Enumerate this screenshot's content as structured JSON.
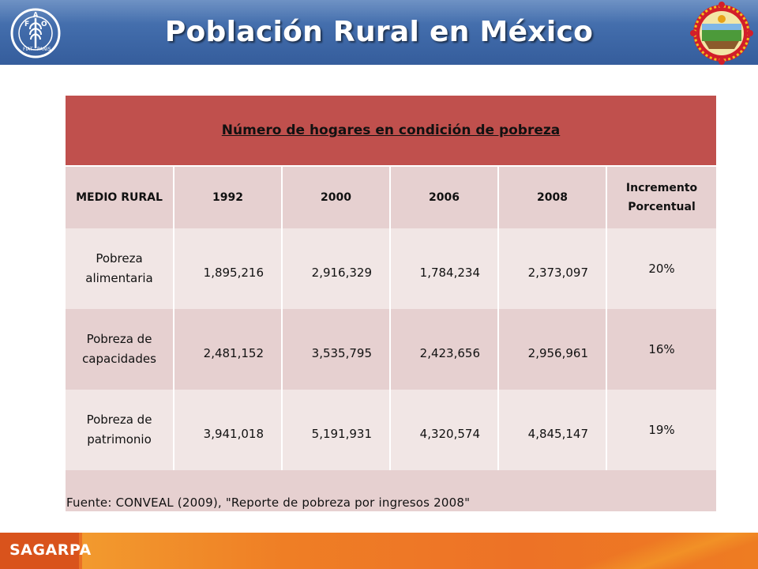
{
  "header": {
    "title": "Población Rural en México",
    "left_logo": "fao-logo",
    "right_logo": "state-seal-logo",
    "colors": {
      "band": "#3f69a8"
    }
  },
  "table": {
    "caption": "Número de hogares en condición de pobreza",
    "columns": [
      "MEDIO RURAL",
      "1992",
      "2000",
      "2006",
      "2008",
      "Incremento Porcentual"
    ],
    "rows": [
      {
        "label_line1": "Pobreza",
        "label_line2": "alimentaria",
        "values": [
          "1,895,216",
          "2,916,329",
          "1,784,234",
          "2,373,097"
        ],
        "increment": "20%"
      },
      {
        "label_line1": "Pobreza de",
        "label_line2": "capacidades",
        "values": [
          "2,481,152",
          "3,535,795",
          "2,423,656",
          "2,956,961"
        ],
        "increment": "16%"
      },
      {
        "label_line1": "Pobreza de",
        "label_line2": "patrimonio",
        "values": [
          "3,941,018",
          "5,191,931",
          "4,320,574",
          "4,845,147"
        ],
        "increment": "19%"
      }
    ],
    "source": "Fuente: CONVEAL (2009), \"Reporte de pobreza por ingresos 2008\"",
    "colors": {
      "header": "#c0504d",
      "row_light": "#f1e6e5",
      "row_dark": "#e6d0d0"
    }
  },
  "footer": {
    "brand": "SAGARPA",
    "colors": {
      "band": "#ea7125"
    }
  }
}
